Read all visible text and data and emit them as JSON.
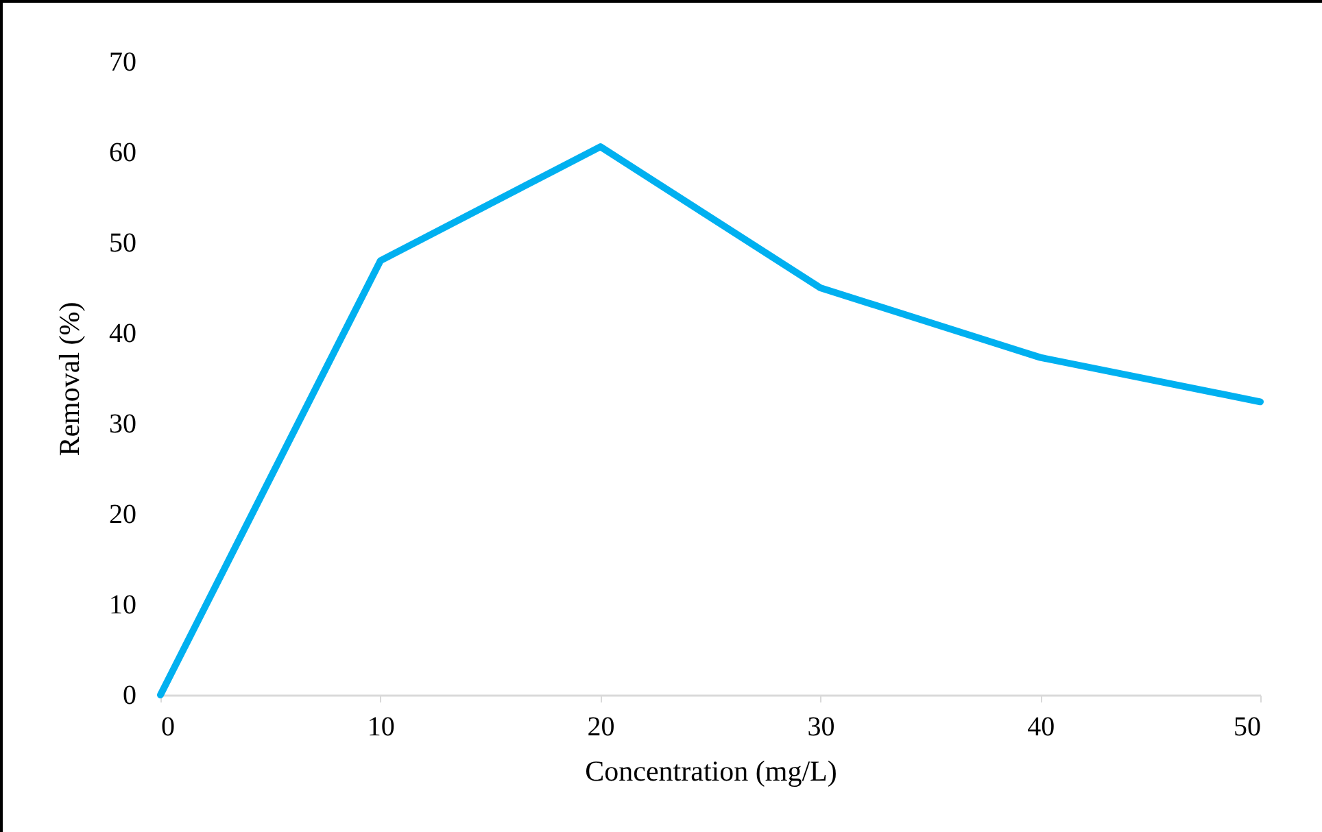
{
  "chart_data": {
    "type": "line",
    "xlabel": "Concentration (mg/L)",
    "ylabel": "Removal (%)",
    "x": [
      0,
      10,
      20,
      30,
      40,
      50
    ],
    "series": [
      {
        "color": "#00b0f0",
        "values": [
          0,
          48,
          60.6,
          45,
          37.3,
          32.4
        ]
      }
    ],
    "xlim": [
      0,
      50
    ],
    "xticks": [
      0,
      10,
      20,
      30,
      40,
      50
    ],
    "ylim": [
      0,
      70
    ],
    "yticks": [
      0,
      10,
      20,
      30,
      40,
      50,
      60,
      70
    ],
    "grid": false,
    "marker": "none",
    "line_style": "solid"
  }
}
